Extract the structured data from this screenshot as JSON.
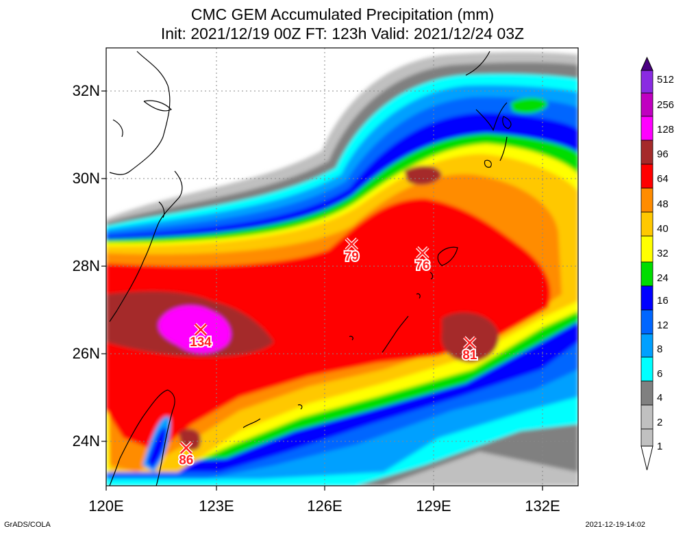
{
  "title_line1": "CMC GEM Accumulated Precipitation (mm)",
  "title_line2": "Init: 2021/12/19 00Z  FT: 123h  Valid: 2021/12/24 03Z",
  "lat_labels": [
    "32N",
    "30N",
    "28N",
    "26N",
    "24N"
  ],
  "lon_labels": [
    "120E",
    "123E",
    "126E",
    "129E",
    "132E"
  ],
  "colorbar": {
    "levels": [
      "512",
      "256",
      "128",
      "96",
      "64",
      "48",
      "40",
      "32",
      "24",
      "16",
      "12",
      "8",
      "6",
      "4",
      "2",
      "1"
    ],
    "colors": [
      "#4b0082",
      "#8a2be2",
      "#c000c0",
      "#ff00ff",
      "#a52a2a",
      "#ff0000",
      "#ff8c00",
      "#ffc800",
      "#ffff00",
      "#00dd00",
      "#0000ff",
      "#0066ff",
      "#00a0ff",
      "#00ffff",
      "#808080",
      "#c0c0c0",
      "#ffffff"
    ]
  },
  "maxima": [
    {
      "value": "134",
      "lon": 122.6,
      "lat": 26.55
    },
    {
      "value": "79",
      "lon": 126.75,
      "lat": 28.5
    },
    {
      "value": "76",
      "lon": 128.7,
      "lat": 28.3
    },
    {
      "value": "81",
      "lon": 130.0,
      "lat": 26.25
    },
    {
      "value": "86",
      "lon": 122.2,
      "lat": 23.85
    }
  ],
  "colors": {
    "marker": "#ff2020",
    "coast": "#000000",
    "grid": "#888888"
  },
  "footer_left": "GrADS/COLA",
  "footer_right": "2021-12-19-14:02"
}
